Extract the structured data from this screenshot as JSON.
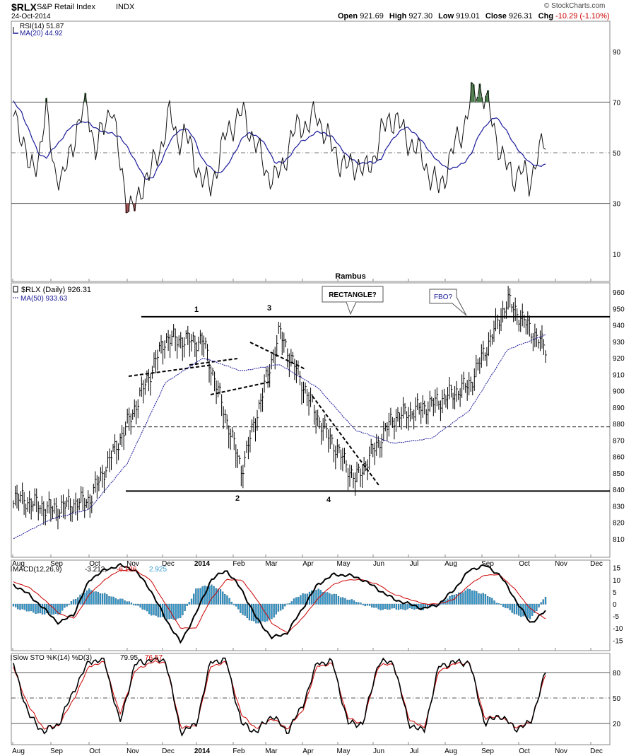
{
  "header": {
    "symbol": "$RLX",
    "name": "S&P Retail Index",
    "exchange": "INDX",
    "date": "24-Oct-2014",
    "open_label": "Open",
    "open": "921.69",
    "high_label": "High",
    "high": "927.30",
    "low_label": "Low",
    "low": "919.01",
    "close_label": "Close",
    "close": "926.31",
    "chg_label": "Chg",
    "chg": "-10.29 (-1.10%)",
    "chg_color": "#cc0000",
    "brand": "© StockCharts.com"
  },
  "months": [
    "Aug",
    "Sep",
    "Oct",
    "Nov",
    "Dec",
    "2014",
    "Feb",
    "Mar",
    "Apr",
    "May",
    "Jun",
    "Jul",
    "Aug",
    "Sep",
    "Oct",
    "Nov",
    "Dec"
  ],
  "rsi": {
    "legend1": "RSI(14) 51.87",
    "legend2": "MA(20) 44.92",
    "ticks": [
      "90",
      "70",
      "50",
      "30",
      "10"
    ],
    "overbought": 70,
    "oversold": 30,
    "mid": 50
  },
  "price": {
    "watermark": "Rambus",
    "legend1": "$RLX (Daily) 926.31",
    "legend2": "MA(50) 933.63",
    "ticks": [
      "960",
      "950",
      "940",
      "930",
      "920",
      "910",
      "900",
      "890",
      "880",
      "870",
      "860",
      "850",
      "840",
      "830",
      "820",
      "810"
    ],
    "callout_rect": "RECTANGLE?",
    "callout_fbo": "FBO?",
    "points": [
      "1",
      "2",
      "3",
      "4"
    ]
  },
  "macd": {
    "legend_prefix": "MACD(12,26,9)",
    "macd_val": "-3.212,",
    "signal_val": "-6.136,",
    "hist_val": "2.925",
    "signal_color": "#cc0000",
    "hist_color": "#3399cc",
    "ticks": [
      "15",
      "10",
      "5",
      "0",
      "-5",
      "-10",
      "-15"
    ]
  },
  "sto": {
    "legend_prefix": "Slow STO %K(14) %D(3)",
    "k_val": "79.95,",
    "d_val": "76.57",
    "ticks": [
      "80",
      "50",
      "20"
    ]
  },
  "colors": {
    "ma_blue": "#1a1a99",
    "rsi_green": "#4a7a4a",
    "rsi_red": "#a05050",
    "macd_hist": "#3399cc",
    "signal_red": "#cc0000"
  },
  "chart_data": [
    {
      "type": "line",
      "title": "RSI(14)",
      "series": [
        {
          "name": "RSI(14)",
          "values": [
            66,
            58,
            42,
            48,
            66,
            44,
            38,
            52,
            61,
            70,
            50,
            60,
            70,
            45,
            30,
            28,
            40,
            44,
            52,
            66,
            55,
            58,
            48,
            40,
            36,
            46,
            58,
            62,
            66,
            58,
            50,
            42,
            39,
            46,
            56,
            62,
            60,
            66,
            58,
            52,
            46,
            44,
            46,
            42,
            48,
            58,
            64,
            62,
            56,
            52,
            48,
            40,
            36,
            44,
            54,
            60,
            72,
            76,
            68,
            56,
            46,
            40,
            44,
            37,
            50,
            53
          ]
        },
        {
          "name": "MA(20)",
          "values": [
            70,
            66,
            58,
            50,
            48,
            52,
            56,
            60,
            62,
            62,
            60,
            58,
            58,
            56,
            52,
            46,
            40,
            40,
            46,
            54,
            58,
            60,
            56,
            48,
            44,
            42,
            44,
            50,
            56,
            58,
            56,
            52,
            46,
            46,
            50,
            54,
            56,
            58,
            58,
            56,
            52,
            48,
            46,
            46,
            46,
            48,
            54,
            58,
            60,
            58,
            54,
            50,
            46,
            44,
            44,
            46,
            50,
            58,
            62,
            64,
            60,
            54,
            50,
            46,
            45,
            45
          ]
        }
      ],
      "ylim": [
        0,
        100
      ],
      "reference_lines": [
        70,
        50,
        30
      ]
    },
    {
      "type": "line",
      "title": "$RLX (Daily)",
      "x": [
        "Aug 2013",
        "Sep 2013",
        "Oct 2013",
        "Nov 2013",
        "Dec 2013",
        "Jan 2014",
        "Feb 2014",
        "Mar 2014",
        "Apr 2014",
        "May 2014",
        "Jun 2014",
        "Jul 2014",
        "Aug 2014",
        "Sep 2014",
        "Oct 2014"
      ],
      "series": [
        {
          "name": "$RLX",
          "values": [
            836,
            828,
            834,
            880,
            932,
            930,
            852,
            936,
            884,
            846,
            884,
            892,
            904,
            955,
            926
          ]
        },
        {
          "name": "MA(50)",
          "values": [
            810,
            822,
            828,
            856,
            905,
            920,
            912,
            916,
            902,
            876,
            868,
            871,
            888,
            925,
            934
          ]
        }
      ],
      "annotations": [
        "RECTANGLE?",
        "FBO?",
        "1",
        "2",
        "3",
        "4"
      ],
      "levels": [
        945,
        878,
        839
      ],
      "ylim": [
        805,
        962
      ]
    },
    {
      "type": "line",
      "title": "MACD(12,26,9)",
      "series": [
        {
          "name": "MACD",
          "values": [
            8,
            4,
            -2,
            -8,
            -4,
            10,
            14,
            16,
            14,
            6,
            -6,
            -16,
            -4,
            10,
            14,
            6,
            -6,
            -14,
            -12,
            -2,
            8,
            12,
            12,
            10,
            6,
            2,
            0,
            -2,
            0,
            6,
            14,
            16,
            12,
            2,
            -8,
            -3
          ]
        },
        {
          "name": "Signal",
          "values": [
            9,
            7,
            2,
            -4,
            -6,
            4,
            10,
            14,
            14,
            10,
            0,
            -10,
            -10,
            2,
            10,
            10,
            2,
            -8,
            -12,
            -6,
            2,
            8,
            10,
            10,
            8,
            4,
            2,
            0,
            0,
            2,
            8,
            12,
            12,
            6,
            -2,
            -6
          ]
        },
        {
          "name": "Histogram",
          "values": [
            -1,
            -3,
            -4,
            -4,
            2,
            6,
            4,
            2,
            0,
            -4,
            -6,
            -6,
            6,
            8,
            4,
            -4,
            -8,
            -6,
            0,
            4,
            6,
            4,
            2,
            0,
            -2,
            -2,
            -2,
            -2,
            0,
            4,
            6,
            4,
            0,
            -4,
            -6,
            3
          ]
        }
      ],
      "ylim": [
        -17,
        17
      ]
    },
    {
      "type": "line",
      "title": "Slow STO %K(14) %D(3)",
      "series": [
        {
          "name": "%K",
          "values": [
            90,
            30,
            10,
            20,
            60,
            94,
            94,
            20,
            90,
            95,
            95,
            10,
            18,
            94,
            94,
            20,
            10,
            30,
            10,
            40,
            92,
            92,
            20,
            20,
            92,
            92,
            20,
            10,
            88,
            92,
            92,
            20,
            30,
            14,
            20,
            80
          ]
        },
        {
          "name": "%D",
          "values": [
            86,
            40,
            14,
            18,
            50,
            88,
            92,
            30,
            82,
            92,
            92,
            16,
            16,
            88,
            92,
            30,
            14,
            26,
            14,
            34,
            88,
            90,
            26,
            20,
            88,
            90,
            26,
            14,
            82,
            90,
            92,
            26,
            28,
            16,
            20,
            77
          ]
        }
      ],
      "ylim": [
        0,
        100
      ],
      "reference_lines": [
        80,
        50,
        20
      ]
    }
  ]
}
